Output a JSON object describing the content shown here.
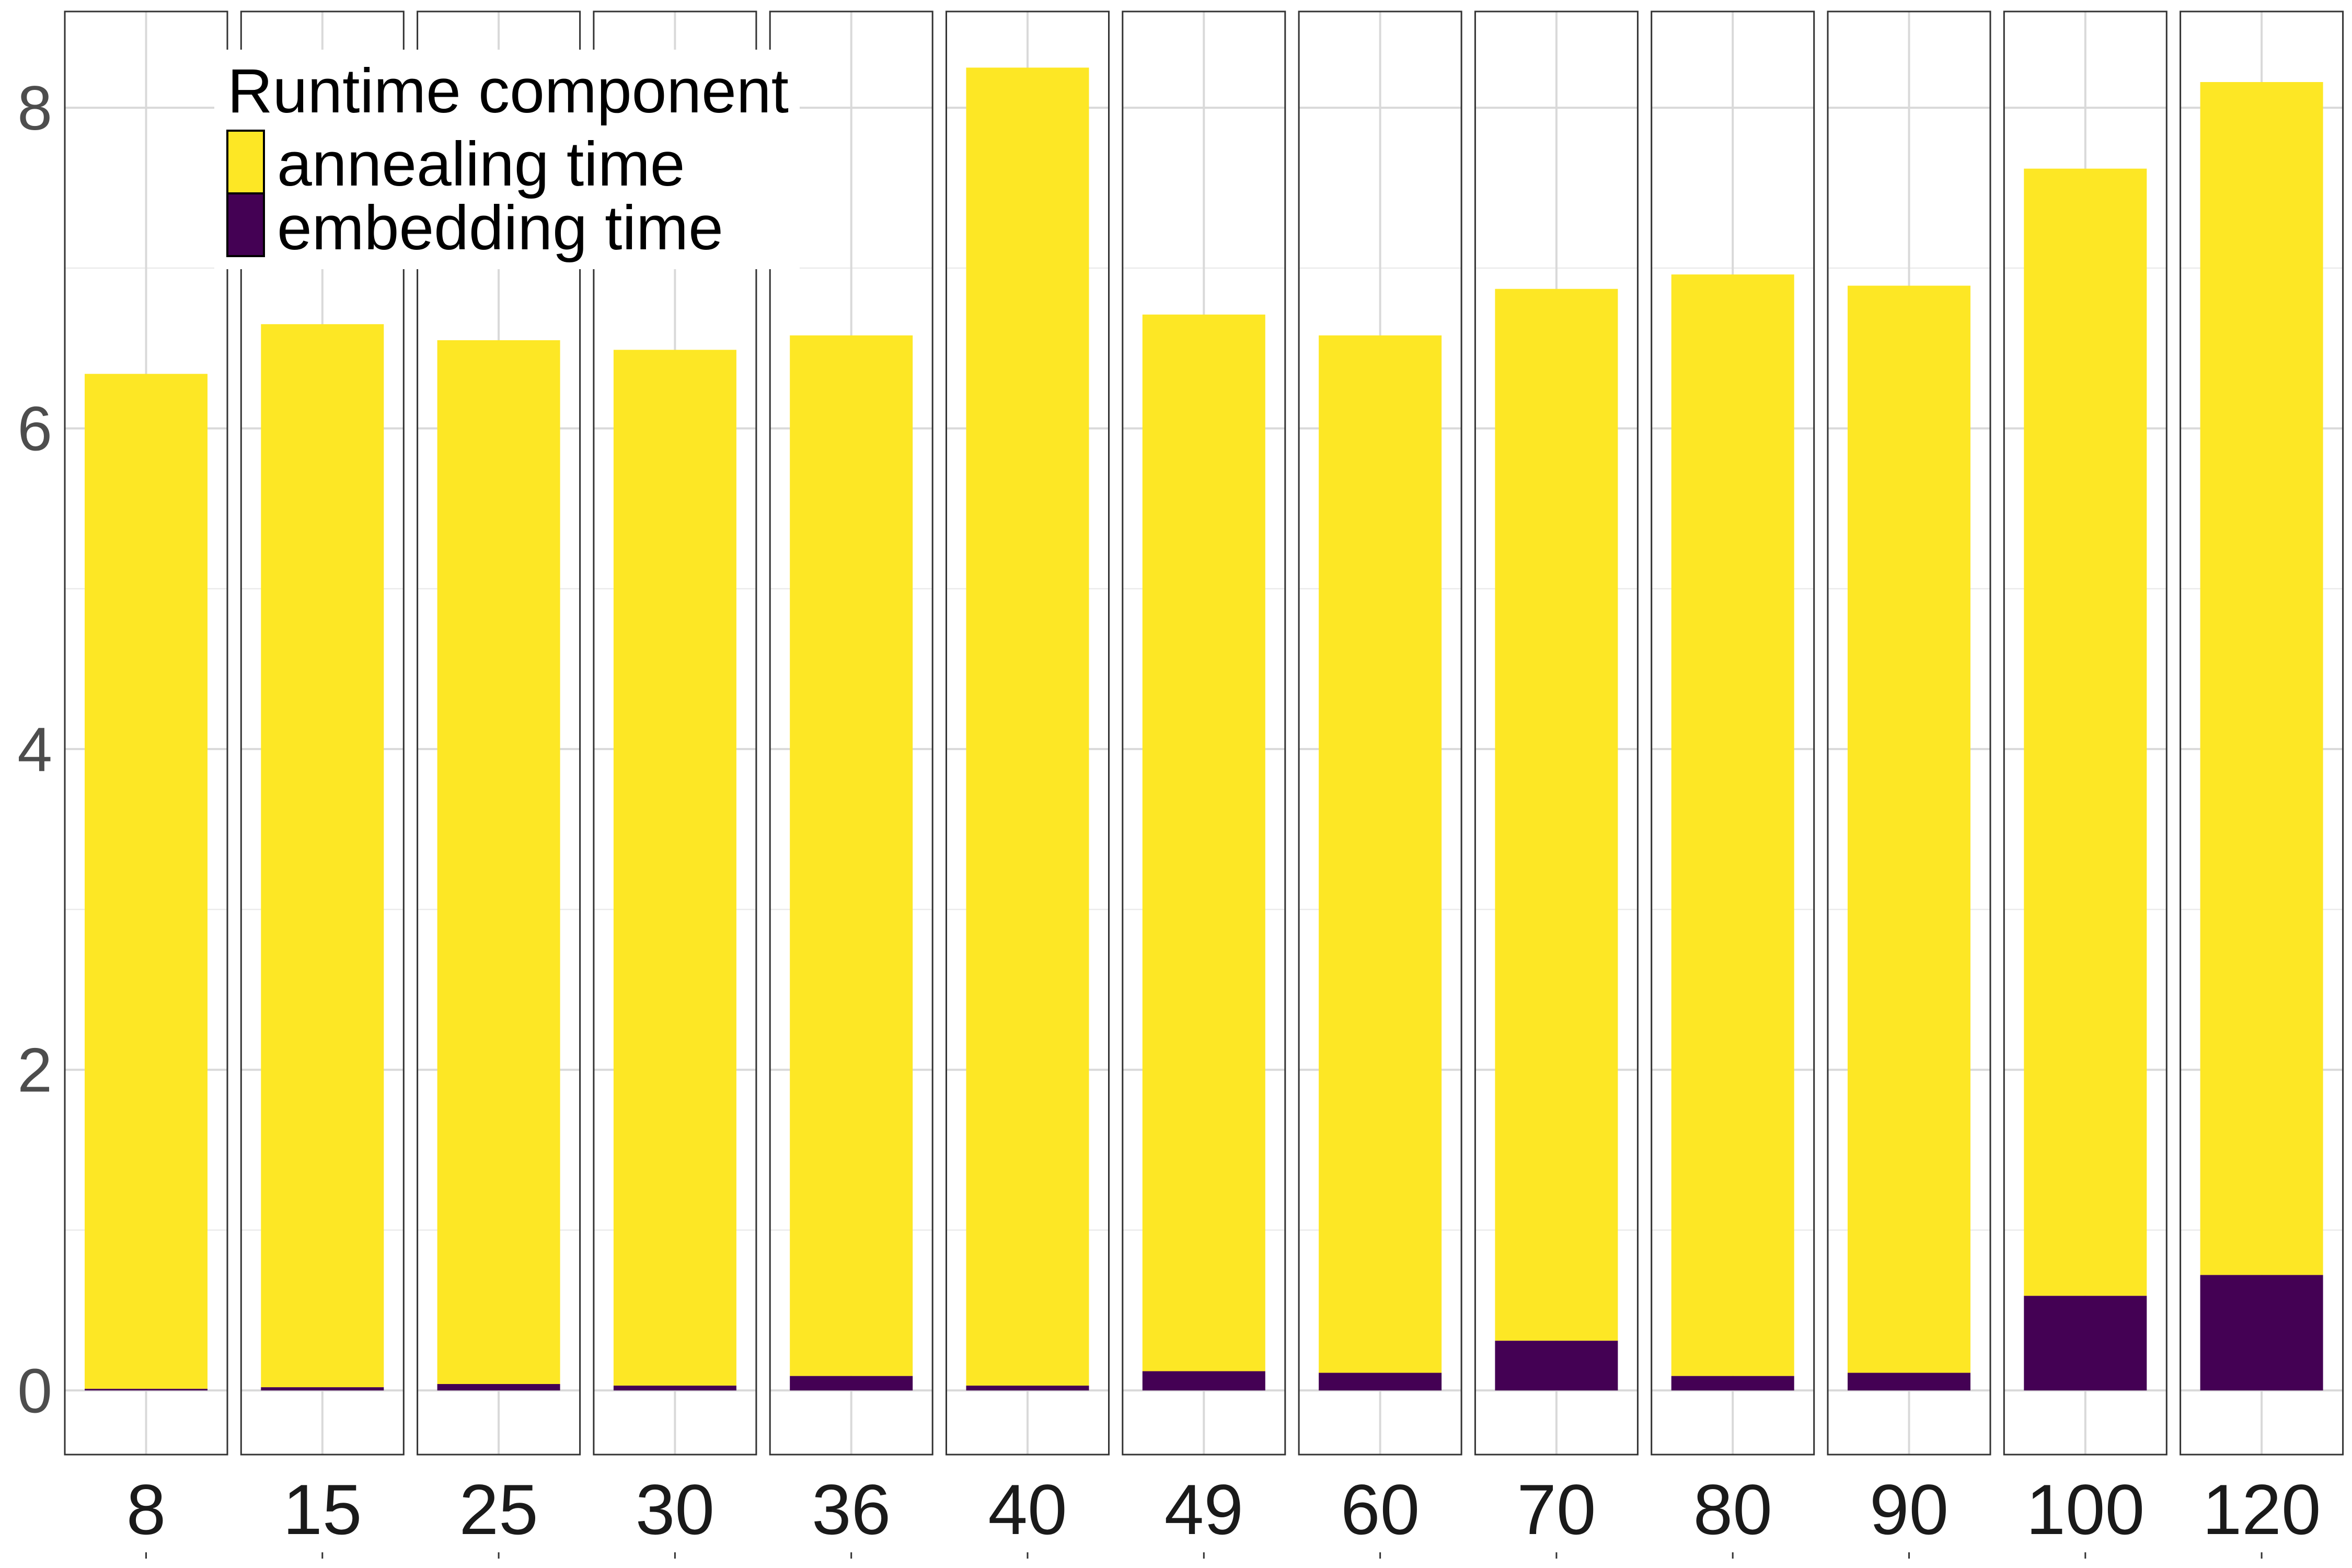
{
  "chart_data": {
    "type": "bar",
    "stacked": true,
    "faceted": true,
    "title": "",
    "xlabel": "",
    "ylabel": "",
    "ylim": [
      -0.4,
      8.6
    ],
    "yticks": [
      0,
      2,
      4,
      6,
      8
    ],
    "grid": true,
    "legend_position": "top-left",
    "legend_title": "Runtime component",
    "categories": [
      "8",
      "15",
      "25",
      "30",
      "36",
      "40",
      "49",
      "60",
      "70",
      "80",
      "90",
      "100",
      "120"
    ],
    "series": [
      {
        "name": "embedding time",
        "color": "#440154",
        "values": [
          0.01,
          0.02,
          0.04,
          0.03,
          0.09,
          0.03,
          0.12,
          0.11,
          0.31,
          0.09,
          0.11,
          0.59,
          0.72
        ]
      },
      {
        "name": "annealing time",
        "color": "#FDE725",
        "values": [
          6.33,
          6.63,
          6.51,
          6.46,
          6.49,
          8.22,
          6.59,
          6.47,
          6.56,
          6.87,
          6.78,
          7.03,
          7.44
        ]
      }
    ],
    "legend_order": [
      "annealing time",
      "embedding time"
    ]
  }
}
